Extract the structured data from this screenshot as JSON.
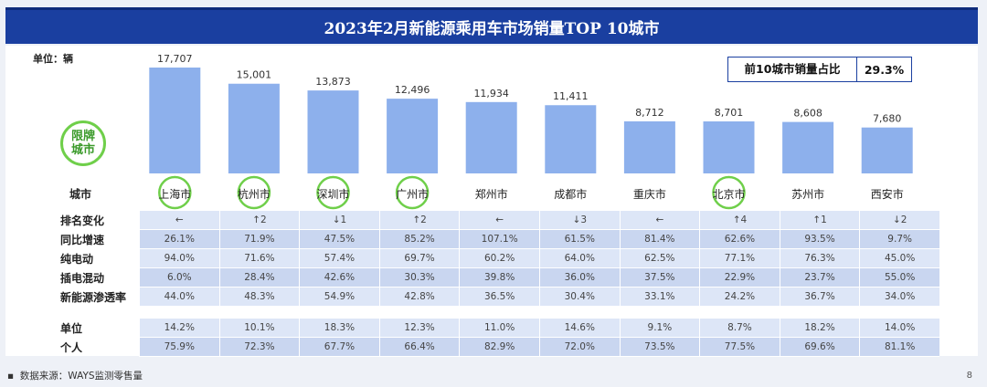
{
  "title": "2023年2月新能源乘用车市场销量TOP 10城市",
  "unit_label": "单位：辆",
  "share_box": {
    "label": "前10城市销量占比",
    "value": "29.3%"
  },
  "restricted_badge": "限牌\n城市",
  "city_row_header": "城市",
  "chart_data": {
    "type": "bar",
    "title": "2023年2月新能源乘用车市场销量TOP 10城市",
    "ylabel": "单位：辆",
    "categories": [
      "上海市",
      "杭州市",
      "深圳市",
      "广州市",
      "郑州市",
      "成都市",
      "重庆市",
      "北京市",
      "苏州市",
      "西安市"
    ],
    "values": [
      17707,
      15001,
      13873,
      12496,
      11934,
      11411,
      8712,
      8701,
      8608,
      7680
    ],
    "value_labels": [
      "17,707",
      "15,001",
      "13,873",
      "12,496",
      "11,934",
      "11,411",
      "8,712",
      "8,701",
      "8,608",
      "7,680"
    ],
    "restricted": [
      true,
      true,
      true,
      true,
      false,
      false,
      false,
      true,
      false,
      false
    ],
    "ylim": [
      0,
      17707
    ],
    "bar_color": "#8db0ec"
  },
  "table_main": {
    "rows": [
      {
        "label": "排名变化",
        "values": [
          "←",
          "↑2",
          "↓1",
          "↑2",
          "←",
          "↓3",
          "←",
          "↑4",
          "↑1",
          "↓2"
        ]
      },
      {
        "label": "同比增速",
        "values": [
          "26.1%",
          "71.9%",
          "47.5%",
          "85.2%",
          "107.1%",
          "61.5%",
          "81.4%",
          "62.6%",
          "93.5%",
          "9.7%"
        ]
      },
      {
        "label": "纯电动",
        "values": [
          "94.0%",
          "71.6%",
          "57.4%",
          "69.7%",
          "60.2%",
          "64.0%",
          "62.5%",
          "77.1%",
          "76.3%",
          "45.0%"
        ]
      },
      {
        "label": "插电混动",
        "values": [
          "6.0%",
          "28.4%",
          "42.6%",
          "30.3%",
          "39.8%",
          "36.0%",
          "37.5%",
          "22.9%",
          "23.7%",
          "55.0%"
        ]
      },
      {
        "label": "新能源渗透率",
        "values": [
          "44.0%",
          "48.3%",
          "54.9%",
          "42.8%",
          "36.5%",
          "30.4%",
          "33.1%",
          "24.2%",
          "36.7%",
          "34.0%"
        ]
      }
    ]
  },
  "table_buyer": {
    "rows": [
      {
        "label": "单位",
        "values": [
          "14.2%",
          "10.1%",
          "18.3%",
          "12.3%",
          "11.0%",
          "14.6%",
          "9.1%",
          "8.7%",
          "18.2%",
          "14.0%"
        ]
      },
      {
        "label": "个人",
        "values": [
          "75.9%",
          "72.3%",
          "67.7%",
          "66.4%",
          "82.9%",
          "72.0%",
          "73.5%",
          "77.5%",
          "69.6%",
          "81.1%"
        ]
      }
    ]
  },
  "footer": {
    "source": "数据来源：WAYS监测零售量",
    "page": "8"
  },
  "colors": {
    "banner": "#1a3fa0",
    "bar": "#8db0ec",
    "ring": "#6fcf4a"
  }
}
